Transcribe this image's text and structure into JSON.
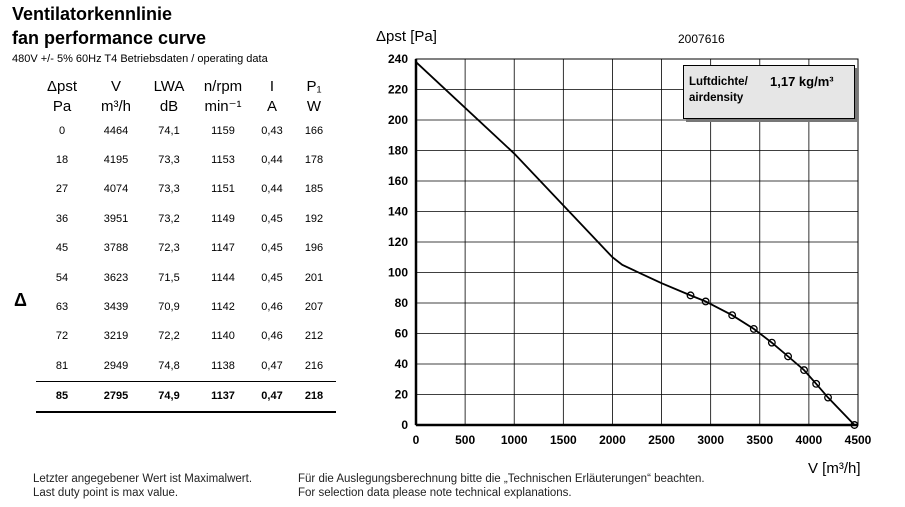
{
  "header": {
    "title_de": "Ventilatorkennlinie",
    "title_en": "fan performance curve",
    "subtitle": "480V +/- 5% 60Hz T4 Betriebsdaten / operating data"
  },
  "table": {
    "col_names": [
      "Δpst",
      "V",
      "LWA",
      "n/rpm",
      "I",
      "P₁"
    ],
    "col_units": [
      "Pa",
      "m³/h",
      "dB",
      "min⁻¹",
      "A",
      "W"
    ],
    "rows": [
      [
        "0",
        "4464",
        "74,1",
        "1159",
        "0,43",
        "166"
      ],
      [
        "18",
        "4195",
        "73,3",
        "1153",
        "0,44",
        "178"
      ],
      [
        "27",
        "4074",
        "73,3",
        "1151",
        "0,44",
        "185"
      ],
      [
        "36",
        "3951",
        "73,2",
        "1149",
        "0,45",
        "192"
      ],
      [
        "45",
        "3788",
        "72,3",
        "1147",
        "0,45",
        "196"
      ],
      [
        "54",
        "3623",
        "71,5",
        "1144",
        "0,45",
        "201"
      ],
      [
        "63",
        "3439",
        "70,9",
        "1142",
        "0,46",
        "207"
      ],
      [
        "72",
        "3219",
        "72,2",
        "1140",
        "0,46",
        "212"
      ],
      [
        "81",
        "2949",
        "74,8",
        "1138",
        "0,47",
        "216"
      ],
      [
        "85",
        "2795",
        "74,9",
        "1137",
        "0,47",
        "218"
      ]
    ],
    "side_marker": "Δ"
  },
  "footer": {
    "left_de": "Letzter angegebener Wert ist Maximalwert.",
    "left_en": "Last duty point is max value.",
    "right_de": "Für die Auslegungsberechnung bitte die „Technischen Erläuterungen“ beachten.",
    "right_en": "For selection data please note technical explanations."
  },
  "chart_data": {
    "type": "line",
    "id_label": "2007616",
    "ylabel": "Δpst [Pa]",
    "xlabel": "V [m³/h]",
    "xlim": [
      0,
      4500
    ],
    "ylim": [
      0,
      240
    ],
    "x_ticks": [
      0,
      500,
      1000,
      1500,
      2000,
      2500,
      3000,
      3500,
      4000,
      4500
    ],
    "y_ticks": [
      0,
      20,
      40,
      60,
      80,
      100,
      120,
      140,
      160,
      180,
      200,
      220,
      240
    ],
    "grid": true,
    "curve": {
      "x": [
        0,
        1000,
        2000,
        2100,
        2300,
        2500,
        2795,
        2949,
        3219,
        3439,
        3623,
        3788,
        3951,
        4074,
        4195,
        4464
      ],
      "y": [
        238,
        178,
        110,
        105,
        99,
        93,
        85,
        81,
        72,
        63,
        54,
        45,
        36,
        27,
        18,
        0
      ]
    },
    "points": {
      "x": [
        2795,
        2949,
        3219,
        3439,
        3623,
        3788,
        3951,
        4074,
        4195,
        4464
      ],
      "y": [
        85,
        81,
        72,
        63,
        54,
        45,
        36,
        27,
        18,
        0
      ]
    },
    "legend": {
      "label_de": "Luftdichte/",
      "label_en": "airdensity",
      "value": "1,17 kg/m³"
    }
  }
}
